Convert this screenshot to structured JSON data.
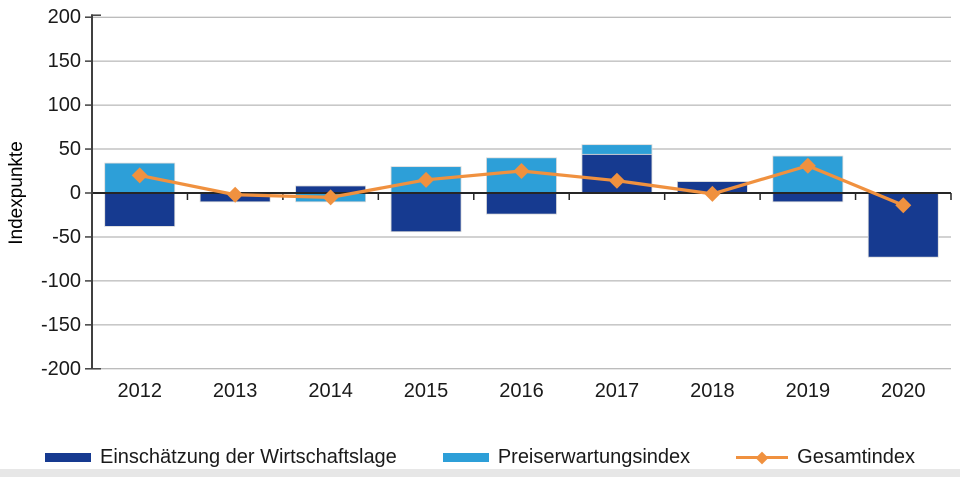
{
  "chart_data": {
    "type": "bar",
    "subtype": "stacked-bars-with-line-overlay",
    "title": "",
    "xlabel": "",
    "ylabel": "Indexpunkte",
    "categories": [
      "2012",
      "2013",
      "2014",
      "2015",
      "2016",
      "2017",
      "2018",
      "2019",
      "2020"
    ],
    "series": [
      {
        "name": "Einschätzung der Wirtschaftslage",
        "type": "bar",
        "color": "#163a90",
        "values": [
          -38,
          -10,
          8,
          -44,
          -24,
          44,
          13,
          -10,
          -73
        ]
      },
      {
        "name": "Preiserwartungsindex",
        "type": "bar",
        "color": "#2d9fd8",
        "values": [
          34,
          0,
          -10,
          30,
          40,
          11,
          0,
          42,
          0
        ]
      },
      {
        "name": "Gesamtindex",
        "type": "line",
        "marker": "diamond",
        "color": "#f0913f",
        "values": [
          20,
          -2,
          -5,
          15,
          25,
          14,
          -1,
          31,
          -14
        ]
      }
    ],
    "ylim": [
      -200,
      200
    ],
    "ytick_step": 50,
    "yticks": [
      200,
      150,
      100,
      50,
      0,
      -50,
      -100,
      -150,
      -200
    ],
    "grid": true,
    "gridline_color": "#a6a6a6",
    "zero_line_color": "#262626",
    "axis_color": "#404040",
    "legend_position": "bottom",
    "bar_mode": "stacked"
  }
}
